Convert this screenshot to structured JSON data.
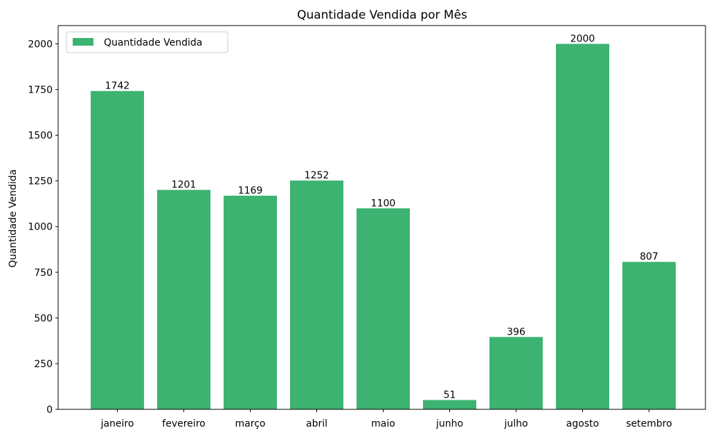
{
  "chart_data": {
    "type": "bar",
    "title": "Quantidade Vendida por Mês",
    "xlabel": "",
    "ylabel": "Quantidade Vendida",
    "categories": [
      "janeiro",
      "fevereiro",
      "março",
      "abril",
      "maio",
      "junho",
      "julho",
      "agosto",
      "setembro"
    ],
    "series": [
      {
        "name": "Quantidade Vendida",
        "color": "#3cb371",
        "values": [
          1742,
          1201,
          1169,
          1252,
          1100,
          51,
          396,
          2000,
          807
        ]
      }
    ],
    "ylim": [
      0,
      2100
    ],
    "yticks": [
      0,
      250,
      500,
      750,
      1000,
      1250,
      1500,
      1750,
      2000
    ],
    "grid": false,
    "legend_position": "top-left"
  }
}
